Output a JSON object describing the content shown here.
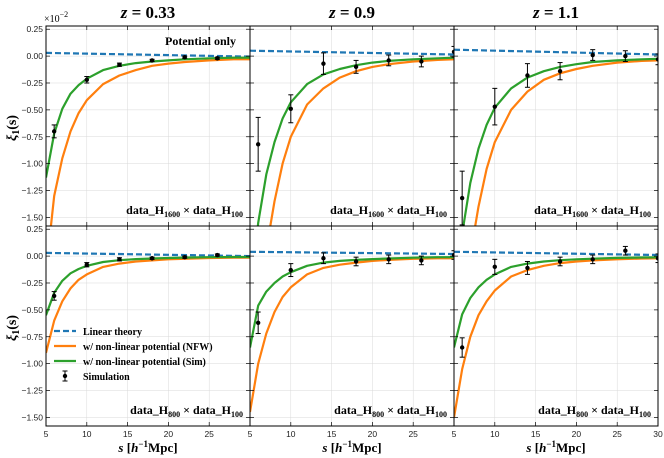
{
  "chart_data": {
    "type": "line",
    "title": "",
    "scale_label": "×10",
    "scale_exp": "−2",
    "xlabel": {
      "s": "s",
      "open": " [",
      "h": "h",
      "exp": "−1",
      "unit": "Mpc]"
    },
    "ylabel": {
      "xi": "ξ",
      "sub": "1",
      "arg": "(s)"
    },
    "xlim": [
      5,
      30
    ],
    "ylim": [
      -1.58,
      0.28
    ],
    "xticks": [
      5,
      10,
      15,
      20,
      25,
      30
    ],
    "yticks": [
      0.25,
      0.0,
      -0.25,
      -0.5,
      -0.75,
      -1.0,
      -1.25,
      -1.5
    ],
    "xtick_labels": [
      "5",
      "10",
      "15",
      "20",
      "25",
      "30"
    ],
    "ytick_labels": [
      "0.25",
      "0.00",
      "−0.25",
      "−0.50",
      "−0.75",
      "−1.00",
      "−1.25",
      "−1.50"
    ],
    "colors": {
      "linear": "#1f77b4",
      "nfw": "#ff7f0e",
      "sim": "#2ca02c",
      "points": "#000000"
    },
    "legend": {
      "position": "lower-left",
      "entries": [
        {
          "key": "linear",
          "label": "Linear theory"
        },
        {
          "key": "nfw",
          "label": "w/ non-linear potential (NFW)"
        },
        {
          "key": "sim",
          "label": "w/ non-linear potential (Sim)"
        },
        {
          "key": "points",
          "label": "Simulation"
        }
      ]
    },
    "rows": [
      {
        "label": {
          "a": "data_H",
          "asub": "1600",
          "mid": " × data_H",
          "bsub": "100"
        },
        "panels": [
          {
            "column_title": {
              "z": "z",
              "eq": " = 0.33"
            },
            "annotation": "Potential only",
            "linear": {
              "x": [
                5,
                30
              ],
              "y": [
                0.03,
                -0.005
              ]
            },
            "nfw": {
              "x": [
                5,
                6,
                7,
                8,
                9,
                10,
                12,
                14,
                16,
                18,
                20,
                22,
                25,
                28,
                30
              ],
              "y": [
                -2.0,
                -1.3,
                -0.95,
                -0.7,
                -0.53,
                -0.41,
                -0.26,
                -0.18,
                -0.13,
                -0.09,
                -0.07,
                -0.055,
                -0.04,
                -0.03,
                -0.03
              ]
            },
            "sim": {
              "x": [
                5,
                6,
                7,
                8,
                9,
                10,
                12,
                14,
                16,
                18,
                20,
                22,
                25,
                28,
                30
              ],
              "y": [
                -1.13,
                -0.72,
                -0.49,
                -0.35,
                -0.27,
                -0.21,
                -0.13,
                -0.09,
                -0.065,
                -0.05,
                -0.04,
                -0.03,
                -0.02,
                -0.015,
                -0.015
              ]
            },
            "points": {
              "x": [
                6,
                10,
                14,
                18,
                22,
                26
              ],
              "y": [
                -0.7,
                -0.22,
                -0.08,
                -0.04,
                -0.01,
                -0.02
              ],
              "err": [
                0.06,
                0.03,
                0.015,
                0.01,
                0.01,
                0.01
              ]
            }
          },
          {
            "column_title": {
              "z": "z",
              "eq": " = 0.9"
            },
            "annotation": "",
            "linear": {
              "x": [
                5,
                30
              ],
              "y": [
                0.05,
                0.015
              ]
            },
            "nfw": {
              "x": [
                5,
                6,
                7,
                8,
                9,
                10,
                12,
                14,
                16,
                18,
                20,
                22,
                25,
                28,
                30
              ],
              "y": [
                -3.0,
                -2.3,
                -1.8,
                -1.35,
                -1.0,
                -0.75,
                -0.45,
                -0.3,
                -0.2,
                -0.14,
                -0.1,
                -0.075,
                -0.05,
                -0.035,
                -0.03
              ]
            },
            "sim": {
              "x": [
                5,
                6,
                7,
                8,
                9,
                10,
                12,
                14,
                16,
                18,
                20,
                22,
                25,
                28,
                30
              ],
              "y": [
                -2.3,
                -1.55,
                -1.1,
                -0.8,
                -0.58,
                -0.43,
                -0.26,
                -0.17,
                -0.12,
                -0.085,
                -0.06,
                -0.045,
                -0.03,
                -0.02,
                -0.015
              ]
            },
            "points": {
              "x": [
                6,
                10,
                14,
                18,
                22,
                26,
                30
              ],
              "y": [
                -0.82,
                -0.49,
                -0.07,
                -0.1,
                -0.04,
                -0.05,
                0.04
              ],
              "err": [
                0.25,
                0.13,
                0.1,
                0.06,
                0.05,
                0.05,
                0.05
              ]
            }
          },
          {
            "column_title": {
              "z": "z",
              "eq": " = 1.1"
            },
            "annotation": "",
            "linear": {
              "x": [
                5,
                30
              ],
              "y": [
                0.06,
                0.015
              ]
            },
            "nfw": {
              "x": [
                5,
                6,
                7,
                8,
                9,
                10,
                12,
                14,
                16,
                18,
                20,
                22,
                25,
                28,
                30
              ],
              "y": [
                -3.0,
                -2.4,
                -1.85,
                -1.4,
                -1.05,
                -0.8,
                -0.5,
                -0.33,
                -0.22,
                -0.16,
                -0.12,
                -0.09,
                -0.06,
                -0.045,
                -0.04
              ]
            },
            "sim": {
              "x": [
                5,
                6,
                7,
                8,
                9,
                10,
                12,
                14,
                16,
                18,
                20,
                22,
                25,
                28,
                30
              ],
              "y": [
                -2.4,
                -1.65,
                -1.18,
                -0.86,
                -0.64,
                -0.48,
                -0.3,
                -0.2,
                -0.14,
                -0.1,
                -0.075,
                -0.055,
                -0.04,
                -0.03,
                -0.025
              ]
            },
            "points": {
              "x": [
                6,
                10,
                14,
                18,
                22,
                26,
                30
              ],
              "y": [
                -1.32,
                -0.47,
                -0.18,
                -0.14,
                0.01,
                0.0,
                -0.03
              ],
              "err": [
                0.25,
                0.17,
                0.11,
                0.08,
                0.05,
                0.05,
                0.05
              ]
            }
          }
        ]
      },
      {
        "label": {
          "a": "data_H",
          "asub": "800",
          "mid": " × data_H",
          "bsub": "100"
        },
        "panels": [
          {
            "column_title": null,
            "annotation": "",
            "linear": {
              "x": [
                5,
                30
              ],
              "y": [
                0.03,
                0.0
              ]
            },
            "nfw": {
              "x": [
                5,
                6,
                7,
                8,
                9,
                10,
                12,
                14,
                16,
                18,
                20,
                22,
                25,
                28,
                30
              ],
              "y": [
                -0.9,
                -0.6,
                -0.42,
                -0.3,
                -0.22,
                -0.17,
                -0.1,
                -0.07,
                -0.05,
                -0.04,
                -0.03,
                -0.025,
                -0.018,
                -0.015,
                -0.015
              ]
            },
            "sim": {
              "x": [
                5,
                6,
                7,
                8,
                9,
                10,
                12,
                14,
                16,
                18,
                20,
                22,
                25,
                28,
                30
              ],
              "y": [
                -0.55,
                -0.34,
                -0.23,
                -0.16,
                -0.12,
                -0.09,
                -0.055,
                -0.038,
                -0.028,
                -0.022,
                -0.018,
                -0.014,
                -0.01,
                -0.008,
                -0.008
              ]
            },
            "points": {
              "x": [
                6,
                10,
                14,
                18,
                22,
                26
              ],
              "y": [
                -0.37,
                -0.08,
                -0.03,
                -0.02,
                -0.01,
                0.01
              ],
              "err": [
                0.04,
                0.02,
                0.015,
                0.01,
                0.01,
                0.01
              ]
            }
          },
          {
            "column_title": null,
            "annotation": "",
            "linear": {
              "x": [
                5,
                30
              ],
              "y": [
                0.04,
                0.02
              ]
            },
            "nfw": {
              "x": [
                5,
                6,
                7,
                8,
                9,
                10,
                12,
                14,
                16,
                18,
                20,
                22,
                25,
                28,
                30
              ],
              "y": [
                -1.45,
                -1.0,
                -0.72,
                -0.52,
                -0.38,
                -0.29,
                -0.17,
                -0.11,
                -0.08,
                -0.06,
                -0.045,
                -0.035,
                -0.025,
                -0.02,
                -0.02
              ]
            },
            "sim": {
              "x": [
                5,
                6,
                7,
                8,
                9,
                10,
                12,
                14,
                16,
                18,
                20,
                22,
                25,
                28,
                30
              ],
              "y": [
                -0.85,
                -0.46,
                -0.33,
                -0.25,
                -0.19,
                -0.15,
                -0.09,
                -0.06,
                -0.045,
                -0.035,
                -0.028,
                -0.022,
                -0.015,
                -0.01,
                -0.01
              ]
            },
            "points": {
              "x": [
                6,
                10,
                14,
                18,
                22,
                26,
                30
              ],
              "y": [
                -0.62,
                -0.13,
                -0.02,
                -0.05,
                -0.03,
                -0.04,
                0.01
              ],
              "err": [
                0.1,
                0.06,
                0.05,
                0.04,
                0.04,
                0.04,
                0.04
              ]
            }
          },
          {
            "column_title": null,
            "annotation": "",
            "linear": {
              "x": [
                5,
                30
              ],
              "y": [
                0.04,
                0.01
              ]
            },
            "nfw": {
              "x": [
                5,
                6,
                7,
                8,
                9,
                10,
                12,
                14,
                16,
                18,
                20,
                22,
                25,
                28,
                30
              ],
              "y": [
                -1.5,
                -1.05,
                -0.75,
                -0.55,
                -0.42,
                -0.32,
                -0.19,
                -0.13,
                -0.09,
                -0.065,
                -0.05,
                -0.04,
                -0.03,
                -0.022,
                -0.02
              ]
            },
            "sim": {
              "x": [
                5,
                6,
                7,
                8,
                9,
                10,
                12,
                14,
                16,
                18,
                20,
                22,
                25,
                28,
                30
              ],
              "y": [
                -0.85,
                -0.54,
                -0.39,
                -0.29,
                -0.22,
                -0.17,
                -0.1,
                -0.07,
                -0.05,
                -0.038,
                -0.03,
                -0.024,
                -0.017,
                -0.013,
                -0.012
              ]
            },
            "points": {
              "x": [
                6,
                10,
                14,
                18,
                22,
                26,
                30
              ],
              "y": [
                -0.85,
                -0.1,
                -0.11,
                -0.05,
                -0.03,
                0.05,
                -0.02
              ],
              "err": [
                0.09,
                0.07,
                0.06,
                0.04,
                0.04,
                0.04,
                0.04
              ]
            }
          }
        ]
      }
    ]
  }
}
